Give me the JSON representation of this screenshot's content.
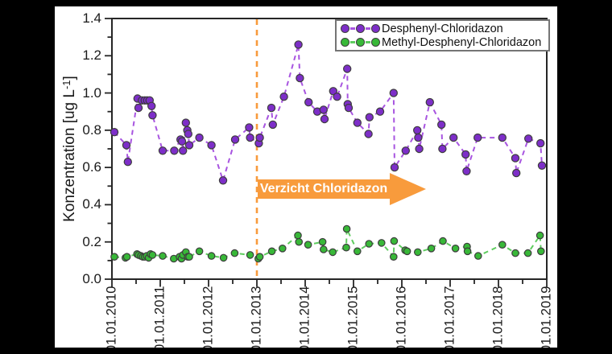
{
  "colors": {
    "background_outer": "#000000",
    "background_plot": "#ffffff",
    "axis": "#262626",
    "text": "#1a1a1a",
    "annotation_orange": "#F89B3C",
    "desphenyl_marker": "#7D2EC8",
    "desphenyl_line": "#A855E0",
    "methyl_marker": "#38B838",
    "methyl_line": "#5FCC5F"
  },
  "chart_data": {
    "type": "scatter",
    "title": "",
    "xlabel": "",
    "ylabel": "Konzentration [ug L-1]",
    "ylabel_parts": {
      "main": "Konzentration [ug L",
      "sup": "-1",
      "end": "]"
    },
    "grid": false,
    "legend_position": "top-right",
    "xlim": [
      2010.0,
      2019.0
    ],
    "ylim": [
      0.0,
      1.4
    ],
    "x_ticks": [
      {
        "year": 2010,
        "label": "01.01.2010"
      },
      {
        "year": 2011,
        "label": "01.01.2011"
      },
      {
        "year": 2012,
        "label": "01.01.2012"
      },
      {
        "year": 2013,
        "label": "01.01.2013"
      },
      {
        "year": 2014,
        "label": "01.01.2014"
      },
      {
        "year": 2015,
        "label": "01.01.2015"
      },
      {
        "year": 2016,
        "label": "01.01.2016"
      },
      {
        "year": 2017,
        "label": "01.01.2017"
      },
      {
        "year": 2018,
        "label": "01.01.2018"
      },
      {
        "year": 2019,
        "label": "01.01.2019"
      }
    ],
    "x_minor_tick_step": 0.5,
    "y_ticks": [
      {
        "value": 0.0,
        "label": "0.0"
      },
      {
        "value": 0.2,
        "label": "0.2"
      },
      {
        "value": 0.4,
        "label": "0.4"
      },
      {
        "value": 0.6,
        "label": "0.6"
      },
      {
        "value": 0.8,
        "label": "0.8"
      },
      {
        "value": 1.0,
        "label": "1.0"
      },
      {
        "value": 1.2,
        "label": "1.2"
      },
      {
        "value": 1.4,
        "label": "1.4"
      }
    ],
    "y_minor_tick_step": 0.1,
    "annotation": {
      "label": "Verzicht Chloridazon",
      "x": 2013.0,
      "style": "vertical dashed line at x with right-pointing block arrow",
      "color": "#F89B3C"
    },
    "series": [
      {
        "name": "Desphenyl-Chloridazon",
        "marker_color": "#7D2EC8",
        "line_color": "#A855E0",
        "line_style": "dashed",
        "points": [
          [
            2010.05,
            0.79
          ],
          [
            2010.3,
            0.72
          ],
          [
            2010.33,
            0.63
          ],
          [
            2010.53,
            0.97
          ],
          [
            2010.55,
            0.92
          ],
          [
            2010.62,
            0.96
          ],
          [
            2010.68,
            0.96
          ],
          [
            2010.73,
            0.96
          ],
          [
            2010.78,
            0.96
          ],
          [
            2010.82,
            0.93
          ],
          [
            2010.84,
            0.88
          ],
          [
            2011.05,
            0.69
          ],
          [
            2011.29,
            0.69
          ],
          [
            2011.42,
            0.75
          ],
          [
            2011.45,
            0.74
          ],
          [
            2011.47,
            0.69
          ],
          [
            2011.53,
            0.84
          ],
          [
            2011.56,
            0.8
          ],
          [
            2011.58,
            0.78
          ],
          [
            2011.6,
            0.72
          ],
          [
            2011.81,
            0.76
          ],
          [
            2012.06,
            0.72
          ],
          [
            2012.3,
            0.53
          ],
          [
            2012.55,
            0.75
          ],
          [
            2012.84,
            0.815
          ],
          [
            2012.86,
            0.76
          ],
          [
            2013.04,
            0.73
          ],
          [
            2013.06,
            0.76
          ],
          [
            2013.3,
            0.92
          ],
          [
            2013.33,
            0.83
          ],
          [
            2013.56,
            0.98
          ],
          [
            2013.86,
            1.26
          ],
          [
            2013.89,
            1.08
          ],
          [
            2014.07,
            0.95
          ],
          [
            2014.25,
            0.9
          ],
          [
            2014.38,
            0.91
          ],
          [
            2014.4,
            0.86
          ],
          [
            2014.58,
            1.01
          ],
          [
            2014.66,
            0.98
          ],
          [
            2014.87,
            1.13
          ],
          [
            2014.88,
            0.94
          ],
          [
            2014.9,
            0.92
          ],
          [
            2015.08,
            0.84
          ],
          [
            2015.31,
            0.78
          ],
          [
            2015.33,
            0.87
          ],
          [
            2015.55,
            0.9
          ],
          [
            2015.83,
            1.0
          ],
          [
            2015.85,
            0.6
          ],
          [
            2016.08,
            0.69
          ],
          [
            2016.32,
            0.8
          ],
          [
            2016.34,
            0.76
          ],
          [
            2016.36,
            0.7
          ],
          [
            2016.58,
            0.95
          ],
          [
            2016.82,
            0.83
          ],
          [
            2016.84,
            0.7
          ],
          [
            2017.07,
            0.76
          ],
          [
            2017.32,
            0.67
          ],
          [
            2017.34,
            0.58
          ],
          [
            2017.57,
            0.76
          ],
          [
            2018.08,
            0.76
          ],
          [
            2018.35,
            0.65
          ],
          [
            2018.37,
            0.57
          ],
          [
            2018.62,
            0.755
          ],
          [
            2018.87,
            0.73
          ],
          [
            2018.9,
            0.61
          ]
        ]
      },
      {
        "name": "Methyl-Desphenyl-Chloridazon",
        "marker_color": "#38B838",
        "line_color": "#5FCC5F",
        "line_style": "dashed",
        "points": [
          [
            2010.05,
            0.12
          ],
          [
            2010.28,
            0.115
          ],
          [
            2010.31,
            0.12
          ],
          [
            2010.52,
            0.135
          ],
          [
            2010.55,
            0.13
          ],
          [
            2010.6,
            0.125
          ],
          [
            2010.64,
            0.12
          ],
          [
            2010.68,
            0.12
          ],
          [
            2010.72,
            0.125
          ],
          [
            2010.76,
            0.115
          ],
          [
            2010.8,
            0.135
          ],
          [
            2010.84,
            0.13
          ],
          [
            2011.05,
            0.125
          ],
          [
            2011.28,
            0.11
          ],
          [
            2011.4,
            0.12
          ],
          [
            2011.44,
            0.11
          ],
          [
            2011.47,
            0.13
          ],
          [
            2011.53,
            0.145
          ],
          [
            2011.57,
            0.12
          ],
          [
            2011.6,
            0.12
          ],
          [
            2011.81,
            0.15
          ],
          [
            2012.06,
            0.125
          ],
          [
            2012.31,
            0.115
          ],
          [
            2012.54,
            0.14
          ],
          [
            2012.86,
            0.13
          ],
          [
            2013.03,
            0.11
          ],
          [
            2013.06,
            0.12
          ],
          [
            2013.31,
            0.15
          ],
          [
            2013.53,
            0.165
          ],
          [
            2013.85,
            0.235
          ],
          [
            2013.87,
            0.2
          ],
          [
            2014.06,
            0.185
          ],
          [
            2014.36,
            0.2
          ],
          [
            2014.38,
            0.16
          ],
          [
            2014.57,
            0.145
          ],
          [
            2014.85,
            0.17
          ],
          [
            2014.86,
            0.27
          ],
          [
            2015.08,
            0.15
          ],
          [
            2015.32,
            0.19
          ],
          [
            2015.58,
            0.195
          ],
          [
            2015.83,
            0.12
          ],
          [
            2015.84,
            0.205
          ],
          [
            2016.07,
            0.155
          ],
          [
            2016.11,
            0.15
          ],
          [
            2016.33,
            0.145
          ],
          [
            2016.61,
            0.165
          ],
          [
            2016.85,
            0.205
          ],
          [
            2017.11,
            0.165
          ],
          [
            2017.35,
            0.175
          ],
          [
            2017.36,
            0.15
          ],
          [
            2017.58,
            0.125
          ],
          [
            2018.08,
            0.185
          ],
          [
            2018.35,
            0.14
          ],
          [
            2018.61,
            0.14
          ],
          [
            2018.86,
            0.235
          ],
          [
            2018.88,
            0.15
          ]
        ]
      }
    ]
  }
}
